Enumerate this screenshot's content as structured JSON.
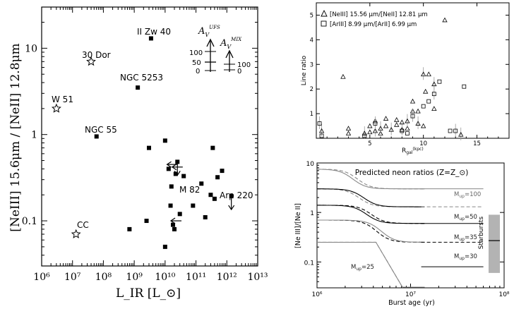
{
  "chart_data": [
    {
      "type": "scatter",
      "title": "",
      "xlabel": "L_IR [L_⊙]",
      "ylabel": "[NeIII] 15.6μm / [NeII] 12.8μm",
      "xscale": "log",
      "yscale": "log",
      "xlim": [
        1000000.0,
        10000000000000.0
      ],
      "ylim": [
        0.03,
        30
      ],
      "xticks": [
        "10⁶",
        "10⁷",
        "10⁸",
        "10⁹",
        "10¹⁰",
        "10¹¹",
        "10¹²",
        "10¹³"
      ],
      "yticks": [
        "0.1",
        "1",
        "10"
      ],
      "labeled_points": [
        {
          "name": "30 Dor",
          "x": 40000000.0,
          "y": 7,
          "marker": "star"
        },
        {
          "name": "W 51",
          "x": 3000000.0,
          "y": 2,
          "marker": "star"
        },
        {
          "name": "CC",
          "x": 13000000.0,
          "y": 0.07,
          "marker": "star"
        },
        {
          "name": "II Zw 40",
          "x": 3500000000.0,
          "y": 13,
          "marker": "square"
        },
        {
          "name": "NGC 5253",
          "x": 1300000000.0,
          "y": 3.5,
          "marker": "square"
        },
        {
          "name": "NGC 55",
          "x": 60000000.0,
          "y": 0.95,
          "marker": "square"
        },
        {
          "name": "M 82",
          "x": 25000000000.0,
          "y": 0.4,
          "marker": "arrow"
        },
        {
          "name": "Arp 220",
          "x": 1400000000000.0,
          "y": 0.16,
          "marker": "arrow"
        }
      ],
      "label_texts": {
        "ii_zw_40": "II Zw 40",
        "dor30": "30 Dor",
        "ngc5253": "NGC 5253",
        "w51": "W 51",
        "ngc55": "NGC 55",
        "m82": "M 82",
        "arp220": "Arp 220",
        "cc": "CC"
      },
      "points": [
        [
          700000000.0,
          0.08
        ],
        [
          2500000000.0,
          0.1
        ],
        [
          3000000000.0,
          0.7
        ],
        [
          10000000000.0,
          0.85
        ],
        [
          10000000000.0,
          0.05
        ],
        [
          13000000000.0,
          0.4
        ],
        [
          15000000000.0,
          0.15
        ],
        [
          18000000000.0,
          0.09
        ],
        [
          20000000000.0,
          0.08
        ],
        [
          22000000000.0,
          0.35
        ],
        [
          30000000000.0,
          0.12
        ],
        [
          40000000000.0,
          0.33
        ],
        [
          80000000000.0,
          0.15
        ],
        [
          150000000000.0,
          0.27
        ],
        [
          200000000000.0,
          0.11
        ],
        [
          300000000000.0,
          0.2
        ],
        [
          350000000000.0,
          0.7
        ],
        [
          400000000000.0,
          0.18
        ],
        [
          500000000000.0,
          0.32
        ],
        [
          700000000000.0,
          0.38
        ],
        [
          16000000000.0,
          0.25
        ]
      ],
      "arrow_points": [
        [
          15000000000.0,
          0.45
        ],
        [
          20000000000.0,
          0.1
        ],
        [
          22000000000.0,
          0.42
        ]
      ],
      "inset": {
        "label1": "A_V^{UFS}",
        "label2": "A_V^{MIX}",
        "ticks_left": [
          "100",
          "50",
          "0"
        ],
        "ticks_right": [
          "100",
          "0"
        ]
      }
    },
    {
      "type": "scatter",
      "title": "",
      "xlabel": "R_gal (kpc)",
      "ylabel": "Line ratio",
      "xlim": [
        0,
        18
      ],
      "ylim": [
        0,
        5.5
      ],
      "xticks": [
        "5",
        "10",
        "15"
      ],
      "yticks": [
        "1",
        "2",
        "3",
        "4",
        "5"
      ],
      "legend": [
        {
          "marker": "triangle",
          "text": "[NeIII] 15.56 μm/[NeII] 12.81 μm"
        },
        {
          "marker": "square",
          "text": "[ArIII] 8.99 μm/[ArII] 6.99 μm"
        }
      ],
      "series": [
        {
          "name": "[NeIII] 15.56 μm/[NeII] 12.81 μm",
          "marker": "triangle",
          "points": [
            [
              0.5,
              0.3
            ],
            [
              3,
              0.2
            ],
            [
              3,
              0.4
            ],
            [
              4.5,
              0.2
            ],
            [
              5,
              0.25
            ],
            [
              5,
              0.5
            ],
            [
              5.5,
              0.3
            ],
            [
              5.5,
              0.7
            ],
            [
              6,
              0.2
            ],
            [
              6,
              0.4
            ],
            [
              6.5,
              0.5
            ],
            [
              6.5,
              0.8
            ],
            [
              7,
              0.35
            ],
            [
              7.5,
              0.55
            ],
            [
              7.5,
              0.75
            ],
            [
              8,
              0.35
            ],
            [
              8,
              0.65
            ],
            [
              8.5,
              0.4
            ],
            [
              8.5,
              0.7
            ],
            [
              9,
              1.1
            ],
            [
              9,
              1.5
            ],
            [
              9.5,
              0.6
            ],
            [
              9.5,
              1.1
            ],
            [
              10,
              0.5
            ],
            [
              10,
              2.6
            ],
            [
              10.2,
              1.9
            ],
            [
              10.5,
              2.6
            ],
            [
              11,
              2.2
            ],
            [
              11,
              1.2
            ],
            [
              12,
              4.8
            ],
            [
              13.5,
              0.15
            ],
            [
              2.5,
              2.5
            ]
          ]
        },
        {
          "name": "[ArIII] 8.99 μm/[ArII] 6.99 μm",
          "marker": "square",
          "points": [
            [
              0.3,
              0.6
            ],
            [
              0.5,
              0.1
            ],
            [
              4.5,
              0.1
            ],
            [
              5.5,
              0.6
            ],
            [
              8,
              0.3
            ],
            [
              8.5,
              0.2
            ],
            [
              9,
              0.9
            ],
            [
              10,
              1.3
            ],
            [
              10.5,
              1.5
            ],
            [
              11,
              1.8
            ],
            [
              11.5,
              2.3
            ],
            [
              12.5,
              0.3
            ],
            [
              13,
              0.3
            ],
            [
              13.8,
              2.1
            ]
          ]
        }
      ]
    },
    {
      "type": "line",
      "title": "Predicted neon ratios (Z=Z_⊙)",
      "xlabel": "Burst age (yr)",
      "ylabel": "[Ne III]/[Ne II]",
      "xscale": "log",
      "yscale": "log",
      "xlim": [
        1000000.0,
        100000000.0
      ],
      "ylim": [
        0.03,
        10
      ],
      "xticks": [
        "10⁶",
        "10⁷",
        "10⁸"
      ],
      "yticks": [
        "0.1",
        "1",
        "10"
      ],
      "series_labels": [
        "M_up=100",
        "M_up=50",
        "M_up=35",
        "M_up=30",
        "M_up=25"
      ],
      "label_texts": {
        "m100": "M",
        "m50": "M",
        "m35": "M",
        "m30": "M",
        "m25": "M",
        "sub": "up",
        "v100": "=100",
        "v50": "=50",
        "v35": "=35",
        "v30": "=30",
        "v25": "=25"
      },
      "band_label": "Starbursts",
      "band_range": [
        0.06,
        0.9
      ],
      "band_median": 0.27,
      "asymptotes": [
        3.0,
        1.3,
        0.6,
        0.25,
        0.08
      ]
    }
  ]
}
